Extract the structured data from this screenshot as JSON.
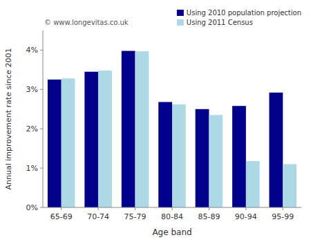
{
  "chart_data": {
    "type": "bar",
    "xlabel": "Age band",
    "ylabel": "Annual improvement rate since 2001",
    "annotations": [
      "© www.longevitas.co.uk"
    ],
    "categories": [
      "65-69",
      "70-74",
      "75-79",
      "80-84",
      "85-89",
      "90-94",
      "95-99"
    ],
    "series": [
      {
        "name": "Using 2010 population projection",
        "color": "#00008B",
        "values": [
          3.25,
          3.45,
          3.98,
          2.68,
          2.5,
          2.58,
          2.92
        ]
      },
      {
        "name": "Using 2011 Census",
        "color": "#ADD8E6",
        "values": [
          3.28,
          3.48,
          3.97,
          2.62,
          2.35,
          1.18,
          1.1
        ]
      }
    ],
    "ylim": [
      0,
      4.5
    ],
    "yticks": [
      {
        "value": 0,
        "label": "0%"
      },
      {
        "value": 1,
        "label": "1%"
      },
      {
        "value": 2,
        "label": "2%"
      },
      {
        "value": 3,
        "label": "3%"
      },
      {
        "value": 4,
        "label": "4%"
      }
    ],
    "grid": false,
    "legend": "upper right"
  }
}
